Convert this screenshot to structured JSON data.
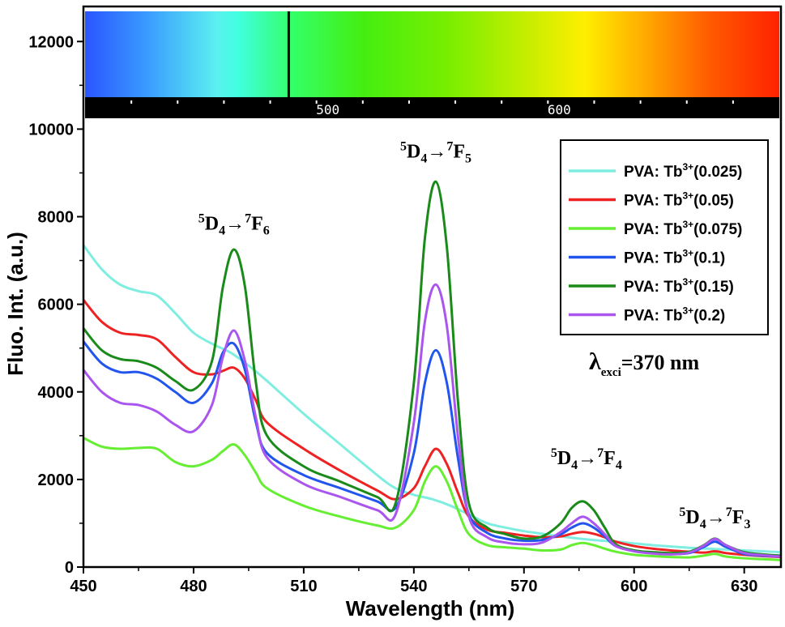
{
  "chart_data": {
    "type": "line",
    "xlabel": "Wavelength (nm)",
    "ylabel": "Fluo. Int. (a.u.)",
    "xlim": [
      450,
      640
    ],
    "ylim": [
      0,
      12800
    ],
    "x_ticks": [
      450,
      480,
      510,
      540,
      570,
      600,
      630
    ],
    "y_ticks": [
      0,
      2000,
      4000,
      6000,
      8000,
      10000,
      12000
    ],
    "grid": false,
    "legend_position": "top-right",
    "series": [
      {
        "name": "PVA: Tb³⁺(0.025)",
        "label_base": "PVA: Tb",
        "label_sup": "3+",
        "label_conc": "(0.025)",
        "color": "#7feee0",
        "x": [
          450,
          455,
          460,
          465,
          470,
          475,
          480,
          485,
          490,
          495,
          500,
          510,
          520,
          530,
          535,
          540,
          545,
          550,
          555,
          560,
          565,
          570,
          575,
          580,
          585,
          590,
          595,
          600,
          605,
          610,
          615,
          620,
          625,
          630,
          635,
          640
        ],
        "y": [
          7350,
          6800,
          6450,
          6300,
          6200,
          5800,
          5350,
          5100,
          4900,
          4600,
          4250,
          3500,
          2800,
          2100,
          1800,
          1650,
          1550,
          1400,
          1200,
          1000,
          900,
          820,
          760,
          700,
          650,
          610,
          580,
          540,
          500,
          470,
          440,
          420,
          400,
          380,
          360,
          340
        ]
      },
      {
        "name": "PVA: Tb³⁺(0.05)",
        "label_base": "PVA: Tb",
        "label_sup": "3+",
        "label_conc": "(0.05)",
        "color": "#ee2222",
        "x": [
          450,
          455,
          460,
          465,
          470,
          475,
          480,
          485,
          488,
          491,
          494,
          497,
          500,
          510,
          520,
          530,
          535,
          540,
          543,
          546,
          549,
          552,
          555,
          560,
          565,
          570,
          575,
          580,
          583,
          586,
          589,
          592,
          595,
          600,
          605,
          610,
          615,
          619,
          622,
          625,
          630,
          635,
          640
        ],
        "y": [
          6100,
          5600,
          5350,
          5300,
          5200,
          4800,
          4450,
          4400,
          4480,
          4550,
          4300,
          3800,
          3300,
          2700,
          2200,
          1750,
          1550,
          1800,
          2300,
          2700,
          2350,
          1700,
          1150,
          850,
          780,
          720,
          680,
          700,
          760,
          800,
          760,
          680,
          580,
          480,
          420,
          380,
          350,
          330,
          360,
          320,
          280,
          250,
          230
        ]
      },
      {
        "name": "PVA: Tb³⁺(0.075)",
        "label_base": "PVA: Tb",
        "label_sup": "3+",
        "label_conc": "(0.075)",
        "color": "#66ee33",
        "x": [
          450,
          455,
          460,
          465,
          470,
          475,
          480,
          485,
          488,
          491,
          494,
          497,
          500,
          510,
          520,
          530,
          535,
          540,
          543,
          546,
          549,
          552,
          555,
          560,
          565,
          570,
          575,
          580,
          583,
          586,
          589,
          592,
          595,
          600,
          605,
          610,
          615,
          619,
          622,
          625,
          630,
          635,
          640
        ],
        "y": [
          2950,
          2750,
          2700,
          2720,
          2700,
          2400,
          2300,
          2450,
          2650,
          2800,
          2550,
          2150,
          1800,
          1400,
          1150,
          950,
          900,
          1300,
          1950,
          2300,
          1950,
          1300,
          750,
          500,
          450,
          420,
          380,
          400,
          500,
          550,
          500,
          420,
          350,
          280,
          250,
          230,
          220,
          260,
          300,
          240,
          200,
          180,
          160
        ]
      },
      {
        "name": "PVA: Tb³⁺(0.1)",
        "label_base": "PVA: Tb",
        "label_sup": "3+",
        "label_conc": "(0.1)",
        "color": "#2255ee",
        "x": [
          450,
          455,
          460,
          465,
          470,
          475,
          480,
          485,
          488,
          491,
          494,
          497,
          500,
          510,
          520,
          530,
          535,
          540,
          543,
          546,
          549,
          552,
          555,
          560,
          565,
          570,
          575,
          580,
          583,
          586,
          589,
          592,
          595,
          600,
          605,
          610,
          615,
          619,
          622,
          625,
          630,
          635,
          640
        ],
        "y": [
          5150,
          4650,
          4450,
          4450,
          4300,
          4000,
          3750,
          4200,
          4900,
          5100,
          4500,
          3300,
          2600,
          2100,
          1800,
          1500,
          1350,
          2600,
          4200,
          4950,
          4200,
          2500,
          1200,
          780,
          650,
          600,
          620,
          750,
          900,
          1000,
          900,
          700,
          480,
          380,
          320,
          300,
          320,
          460,
          580,
          460,
          300,
          260,
          240
        ]
      },
      {
        "name": "PVA: Tb³⁺(0.15)",
        "label_base": "PVA: Tb",
        "label_sup": "3+",
        "label_conc": "(0.15)",
        "color": "#1a8a1a",
        "x": [
          450,
          455,
          460,
          465,
          470,
          475,
          480,
          485,
          488,
          491,
          494,
          497,
          500,
          510,
          520,
          530,
          535,
          540,
          543,
          546,
          549,
          552,
          555,
          560,
          565,
          570,
          575,
          580,
          583,
          586,
          589,
          592,
          595,
          600,
          605,
          610,
          615,
          619,
          622,
          625,
          630,
          635,
          640
        ],
        "y": [
          5450,
          4950,
          4750,
          4700,
          4550,
          4250,
          4050,
          4700,
          6400,
          7250,
          6400,
          4200,
          3000,
          2300,
          1950,
          1600,
          1450,
          4200,
          7500,
          8800,
          7300,
          3800,
          1450,
          900,
          750,
          650,
          700,
          1000,
          1350,
          1500,
          1300,
          900,
          520,
          380,
          340,
          320,
          350,
          500,
          650,
          500,
          340,
          290,
          260
        ]
      },
      {
        "name": "PVA: Tb³⁺(0.2)",
        "label_base": "PVA: Tb",
        "label_sup": "3+",
        "label_conc": "(0.2)",
        "color": "#aa55ee",
        "x": [
          450,
          455,
          460,
          465,
          470,
          475,
          480,
          485,
          488,
          491,
          494,
          497,
          500,
          510,
          520,
          530,
          535,
          540,
          543,
          546,
          549,
          552,
          555,
          560,
          565,
          570,
          575,
          580,
          583,
          586,
          589,
          592,
          595,
          600,
          605,
          610,
          615,
          619,
          622,
          625,
          630,
          635,
          640
        ],
        "y": [
          4500,
          4000,
          3750,
          3700,
          3550,
          3250,
          3100,
          3700,
          4800,
          5400,
          4700,
          3400,
          2500,
          1900,
          1600,
          1300,
          1200,
          3300,
          5600,
          6450,
          5500,
          3000,
          1150,
          680,
          560,
          520,
          560,
          800,
          1000,
          1150,
          1000,
          750,
          480,
          360,
          310,
          290,
          330,
          490,
          640,
          500,
          320,
          270,
          240
        ]
      }
    ],
    "annotations": [
      {
        "lead": "5",
        "state": "D",
        "sub": "4",
        "arrow": "→",
        "lead2": "7",
        "state2": "F",
        "sub2": "6",
        "x": 491,
        "y": 7700
      },
      {
        "lead": "5",
        "state": "D",
        "sub": "4",
        "arrow": "→",
        "lead2": "7",
        "state2": "F",
        "sub2": "5",
        "x": 546,
        "y": 9350
      },
      {
        "lead": "5",
        "state": "D",
        "sub": "4",
        "arrow": "→",
        "lead2": "7",
        "state2": "F",
        "sub2": "4",
        "x": 587,
        "y": 2350
      },
      {
        "lead": "5",
        "state": "D",
        "sub": "4",
        "arrow": "→",
        "lead2": "7",
        "state2": "F",
        "sub2": "3",
        "x": 622,
        "y": 1000
      }
    ],
    "excitation": {
      "symbol": "λ",
      "sub": "exci",
      "value": "=370 nm"
    },
    "spectrum_bar": {
      "tick_labels": [
        "500",
        "600"
      ],
      "marker_nm": 488,
      "range_nm": [
        400,
        700
      ]
    }
  }
}
